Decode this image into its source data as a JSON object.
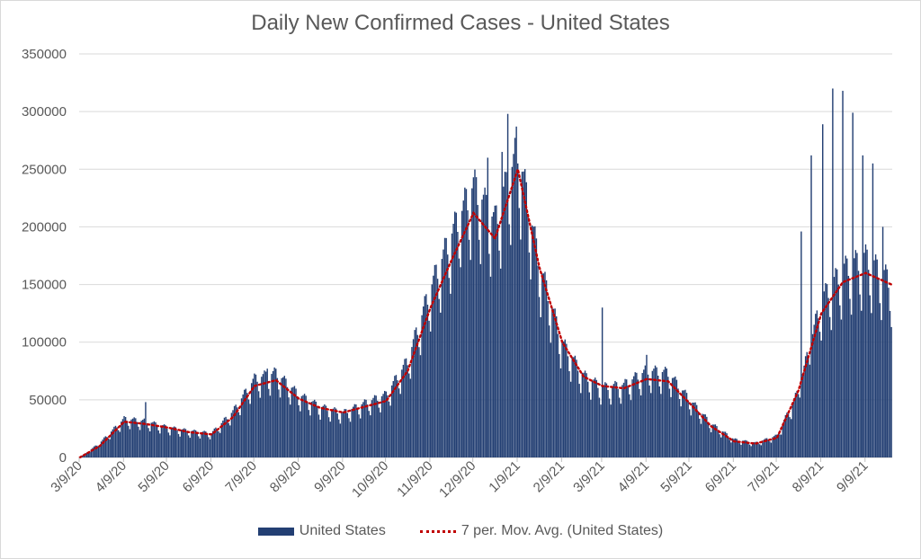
{
  "chart_data": {
    "type": "bar",
    "title": "Daily New Confirmed Cases - United States",
    "xlabel": "",
    "ylabel": "",
    "ylim": [
      0,
      350000
    ],
    "y_ticks": [
      "0",
      "50000",
      "100000",
      "150000",
      "200000",
      "250000",
      "300000",
      "350000"
    ],
    "y_tick_values": [
      0,
      50000,
      100000,
      150000,
      200000,
      250000,
      300000,
      350000
    ],
    "x_tick_labels": [
      "3/9/20",
      "4/9/20",
      "5/9/20",
      "6/9/20",
      "7/9/20",
      "8/9/20",
      "9/9/20",
      "10/9/20",
      "11/9/20",
      "12/9/20",
      "1/9/21",
      "2/9/21",
      "3/9/21",
      "4/9/21",
      "5/9/21",
      "6/9/21",
      "7/9/21",
      "8/9/21",
      "9/9/21"
    ],
    "x_start": "2020-03-09",
    "x_end": "2021-09-27",
    "grid": true,
    "legend_position": "bottom",
    "bar_color": "#233f73",
    "line_color": "#c00000",
    "series": [
      {
        "name": "United States",
        "kind": "bar",
        "dates": [
          "2020-03-09",
          "2020-03-23",
          "2020-04-09",
          "2020-04-24",
          "2020-05-09",
          "2020-05-24",
          "2020-06-09",
          "2020-06-24",
          "2020-07-09",
          "2020-07-24",
          "2020-08-09",
          "2020-08-24",
          "2020-09-09",
          "2020-09-24",
          "2020-10-09",
          "2020-10-24",
          "2020-11-09",
          "2020-11-24",
          "2020-12-09",
          "2020-12-24",
          "2021-01-09",
          "2021-01-24",
          "2021-02-09",
          "2021-02-24",
          "2021-03-09",
          "2021-03-24",
          "2021-04-09",
          "2021-04-24",
          "2021-05-09",
          "2021-05-24",
          "2021-06-09",
          "2021-06-24",
          "2021-07-09",
          "2021-07-24",
          "2021-08-09",
          "2021-08-24",
          "2021-09-09",
          "2021-09-27"
        ],
        "values": [
          0,
          12000,
          32000,
          30000,
          25000,
          22000,
          20000,
          38000,
          65000,
          70000,
          52000,
          42000,
          37000,
          45000,
          52000,
          80000,
          140000,
          185000,
          225000,
          195000,
          255000,
          160000,
          95000,
          68000,
          58000,
          60000,
          72000,
          70000,
          48000,
          28000,
          15000,
          12000,
          18000,
          55000,
          130000,
          155000,
          165000,
          145000
        ]
      },
      {
        "name": "7 per. Mov. Avg. (United States)",
        "kind": "dotted-line",
        "dates": [
          "2020-03-09",
          "2020-03-23",
          "2020-04-09",
          "2020-04-24",
          "2020-05-09",
          "2020-05-24",
          "2020-06-09",
          "2020-06-24",
          "2020-07-09",
          "2020-07-24",
          "2020-08-09",
          "2020-08-24",
          "2020-09-09",
          "2020-09-24",
          "2020-10-09",
          "2020-10-24",
          "2020-11-09",
          "2020-11-24",
          "2020-12-09",
          "2020-12-24",
          "2021-01-09",
          "2021-01-24",
          "2021-02-09",
          "2021-02-24",
          "2021-03-09",
          "2021-03-24",
          "2021-04-09",
          "2021-04-24",
          "2021-05-09",
          "2021-05-24",
          "2021-06-09",
          "2021-06-24",
          "2021-07-09",
          "2021-07-24",
          "2021-08-09",
          "2021-08-24",
          "2021-09-09",
          "2021-09-27"
        ],
        "values": [
          0,
          10000,
          31000,
          29000,
          26000,
          22000,
          20000,
          35000,
          62000,
          67000,
          51000,
          43000,
          39000,
          44000,
          49000,
          75000,
          130000,
          172000,
          212000,
          190000,
          250000,
          165000,
          100000,
          70000,
          62000,
          60000,
          68000,
          66000,
          47000,
          27000,
          14000,
          12000,
          17000,
          58000,
          125000,
          152000,
          160000,
          150000
        ]
      }
    ],
    "spikes": [
      {
        "date": "2020-04-24",
        "value": 48000
      },
      {
        "date": "2020-07-18",
        "value": 77000
      },
      {
        "date": "2020-11-30",
        "value": 165000
      },
      {
        "date": "2020-12-19",
        "value": 260000
      },
      {
        "date": "2020-12-29",
        "value": 265000
      },
      {
        "date": "2021-01-02",
        "value": 298000
      },
      {
        "date": "2021-01-08",
        "value": 287000
      },
      {
        "date": "2021-03-09",
        "value": 130000
      },
      {
        "date": "2021-04-09",
        "value": 89000
      },
      {
        "date": "2021-07-26",
        "value": 196000
      },
      {
        "date": "2021-08-02",
        "value": 262000
      },
      {
        "date": "2021-08-10",
        "value": 289000
      },
      {
        "date": "2021-08-17",
        "value": 320000
      },
      {
        "date": "2021-08-24",
        "value": 318000
      },
      {
        "date": "2021-08-31",
        "value": 299000
      },
      {
        "date": "2021-09-07",
        "value": 262000
      },
      {
        "date": "2021-09-14",
        "value": 255000
      },
      {
        "date": "2021-09-21",
        "value": 200000
      }
    ]
  },
  "legend": {
    "bar_label": "United States",
    "line_label": "7 per. Mov. Avg. (United States)"
  }
}
